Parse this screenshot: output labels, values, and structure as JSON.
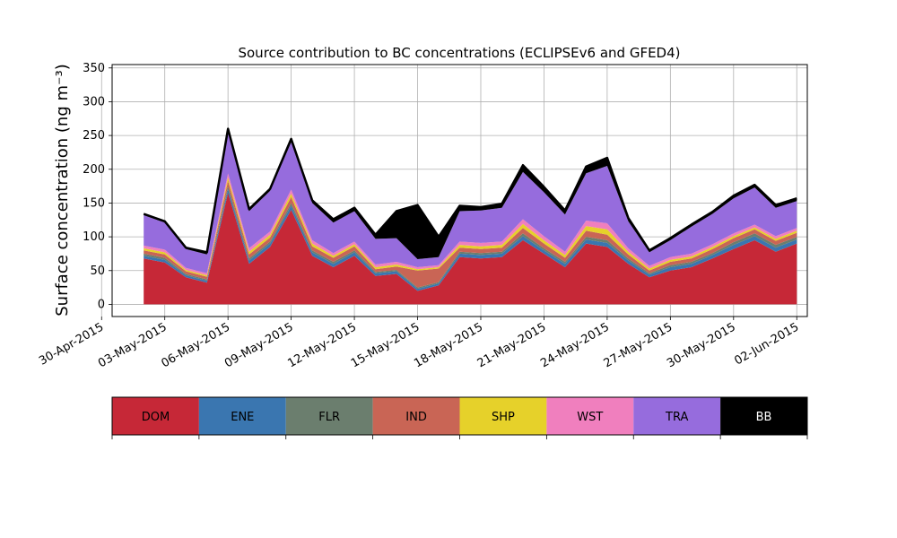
{
  "chart_data": {
    "type": "area",
    "stacked": true,
    "title": "Source contribution to BC concentrations (ECLIPSEv6 and GFED4)",
    "ylabel": "Surface concentration (ng m⁻³)",
    "xlabel": "",
    "ylim": [
      -18,
      355
    ],
    "xlim": [
      "2015-04-30T12:00",
      "2015-06-02T12:00"
    ],
    "yticks": [
      0,
      50,
      100,
      150,
      200,
      250,
      300,
      350
    ],
    "xticks": [
      "30-Apr-2015",
      "03-May-2015",
      "06-May-2015",
      "09-May-2015",
      "12-May-2015",
      "15-May-2015",
      "18-May-2015",
      "21-May-2015",
      "24-May-2015",
      "27-May-2015",
      "30-May-2015",
      "02-Jun-2015"
    ],
    "grid": true,
    "legend_placement": "bottom (color bar)",
    "x": [
      "2015-05-02",
      "2015-05-03",
      "2015-05-04",
      "2015-05-05",
      "2015-05-06",
      "2015-05-07",
      "2015-05-08",
      "2015-05-09",
      "2015-05-10",
      "2015-05-11",
      "2015-05-12",
      "2015-05-13",
      "2015-05-14",
      "2015-05-15",
      "2015-05-16",
      "2015-05-17",
      "2015-05-18",
      "2015-05-19",
      "2015-05-20",
      "2015-05-21",
      "2015-05-22",
      "2015-05-23",
      "2015-05-24",
      "2015-05-25",
      "2015-05-26",
      "2015-05-27",
      "2015-05-28",
      "2015-05-29",
      "2015-05-30",
      "2015-05-31",
      "2015-06-01",
      "2015-06-02"
    ],
    "series": [
      {
        "name": "DOM",
        "color": "#c62837",
        "values": [
          68,
          62,
          40,
          32,
          165,
          60,
          85,
          140,
          72,
          55,
          72,
          42,
          45,
          20,
          28,
          70,
          68,
          70,
          95,
          75,
          55,
          90,
          85,
          60,
          40,
          50,
          55,
          68,
          82,
          95,
          78,
          90
        ]
      },
      {
        "name": "ENE",
        "color": "#3a76b0",
        "values": [
          4,
          4,
          3,
          3,
          6,
          5,
          5,
          6,
          5,
          5,
          5,
          4,
          4,
          3,
          3,
          5,
          5,
          5,
          6,
          5,
          5,
          6,
          6,
          5,
          4,
          5,
          5,
          5,
          6,
          6,
          6,
          6
        ]
      },
      {
        "name": "FLR",
        "color": "#6b7e6e",
        "values": [
          3,
          3,
          2,
          2,
          4,
          3,
          3,
          4,
          3,
          3,
          3,
          2,
          2,
          2,
          2,
          3,
          3,
          3,
          4,
          3,
          3,
          4,
          4,
          3,
          2,
          3,
          3,
          3,
          4,
          4,
          4,
          4
        ]
      },
      {
        "name": "IND",
        "color": "#c96555",
        "values": [
          5,
          5,
          4,
          4,
          8,
          6,
          6,
          9,
          6,
          6,
          6,
          4,
          5,
          25,
          20,
          6,
          6,
          6,
          8,
          7,
          6,
          9,
          8,
          6,
          4,
          5,
          5,
          6,
          6,
          6,
          6,
          6
        ]
      },
      {
        "name": "SHP",
        "color": "#e6d12a",
        "values": [
          3,
          3,
          2,
          2,
          5,
          4,
          4,
          5,
          4,
          3,
          3,
          3,
          3,
          2,
          2,
          4,
          4,
          4,
          6,
          5,
          4,
          7,
          8,
          4,
          3,
          3,
          3,
          3,
          3,
          3,
          3,
          3
        ]
      },
      {
        "name": "WST",
        "color": "#f07fbe",
        "values": [
          4,
          4,
          3,
          3,
          6,
          5,
          5,
          6,
          5,
          4,
          4,
          4,
          4,
          3,
          3,
          5,
          5,
          5,
          7,
          6,
          5,
          8,
          9,
          5,
          4,
          4,
          4,
          4,
          4,
          4,
          4,
          4
        ]
      },
      {
        "name": "TRA",
        "color": "#966cdd",
        "values": [
          45,
          40,
          28,
          28,
          62,
          55,
          60,
          70,
          55,
          45,
          45,
          38,
          35,
          12,
          12,
          45,
          48,
          50,
          70,
          65,
          55,
          70,
          85,
          40,
          20,
          25,
          40,
          45,
          52,
          55,
          42,
          40
        ]
      },
      {
        "name": "BB",
        "color": "#000000",
        "values": [
          2,
          2,
          2,
          3,
          4,
          3,
          3,
          5,
          4,
          5,
          5,
          6,
          40,
          80,
          30,
          8,
          5,
          6,
          10,
          8,
          6,
          10,
          12,
          5,
          3,
          3,
          3,
          3,
          4,
          4,
          4,
          4
        ]
      }
    ]
  }
}
